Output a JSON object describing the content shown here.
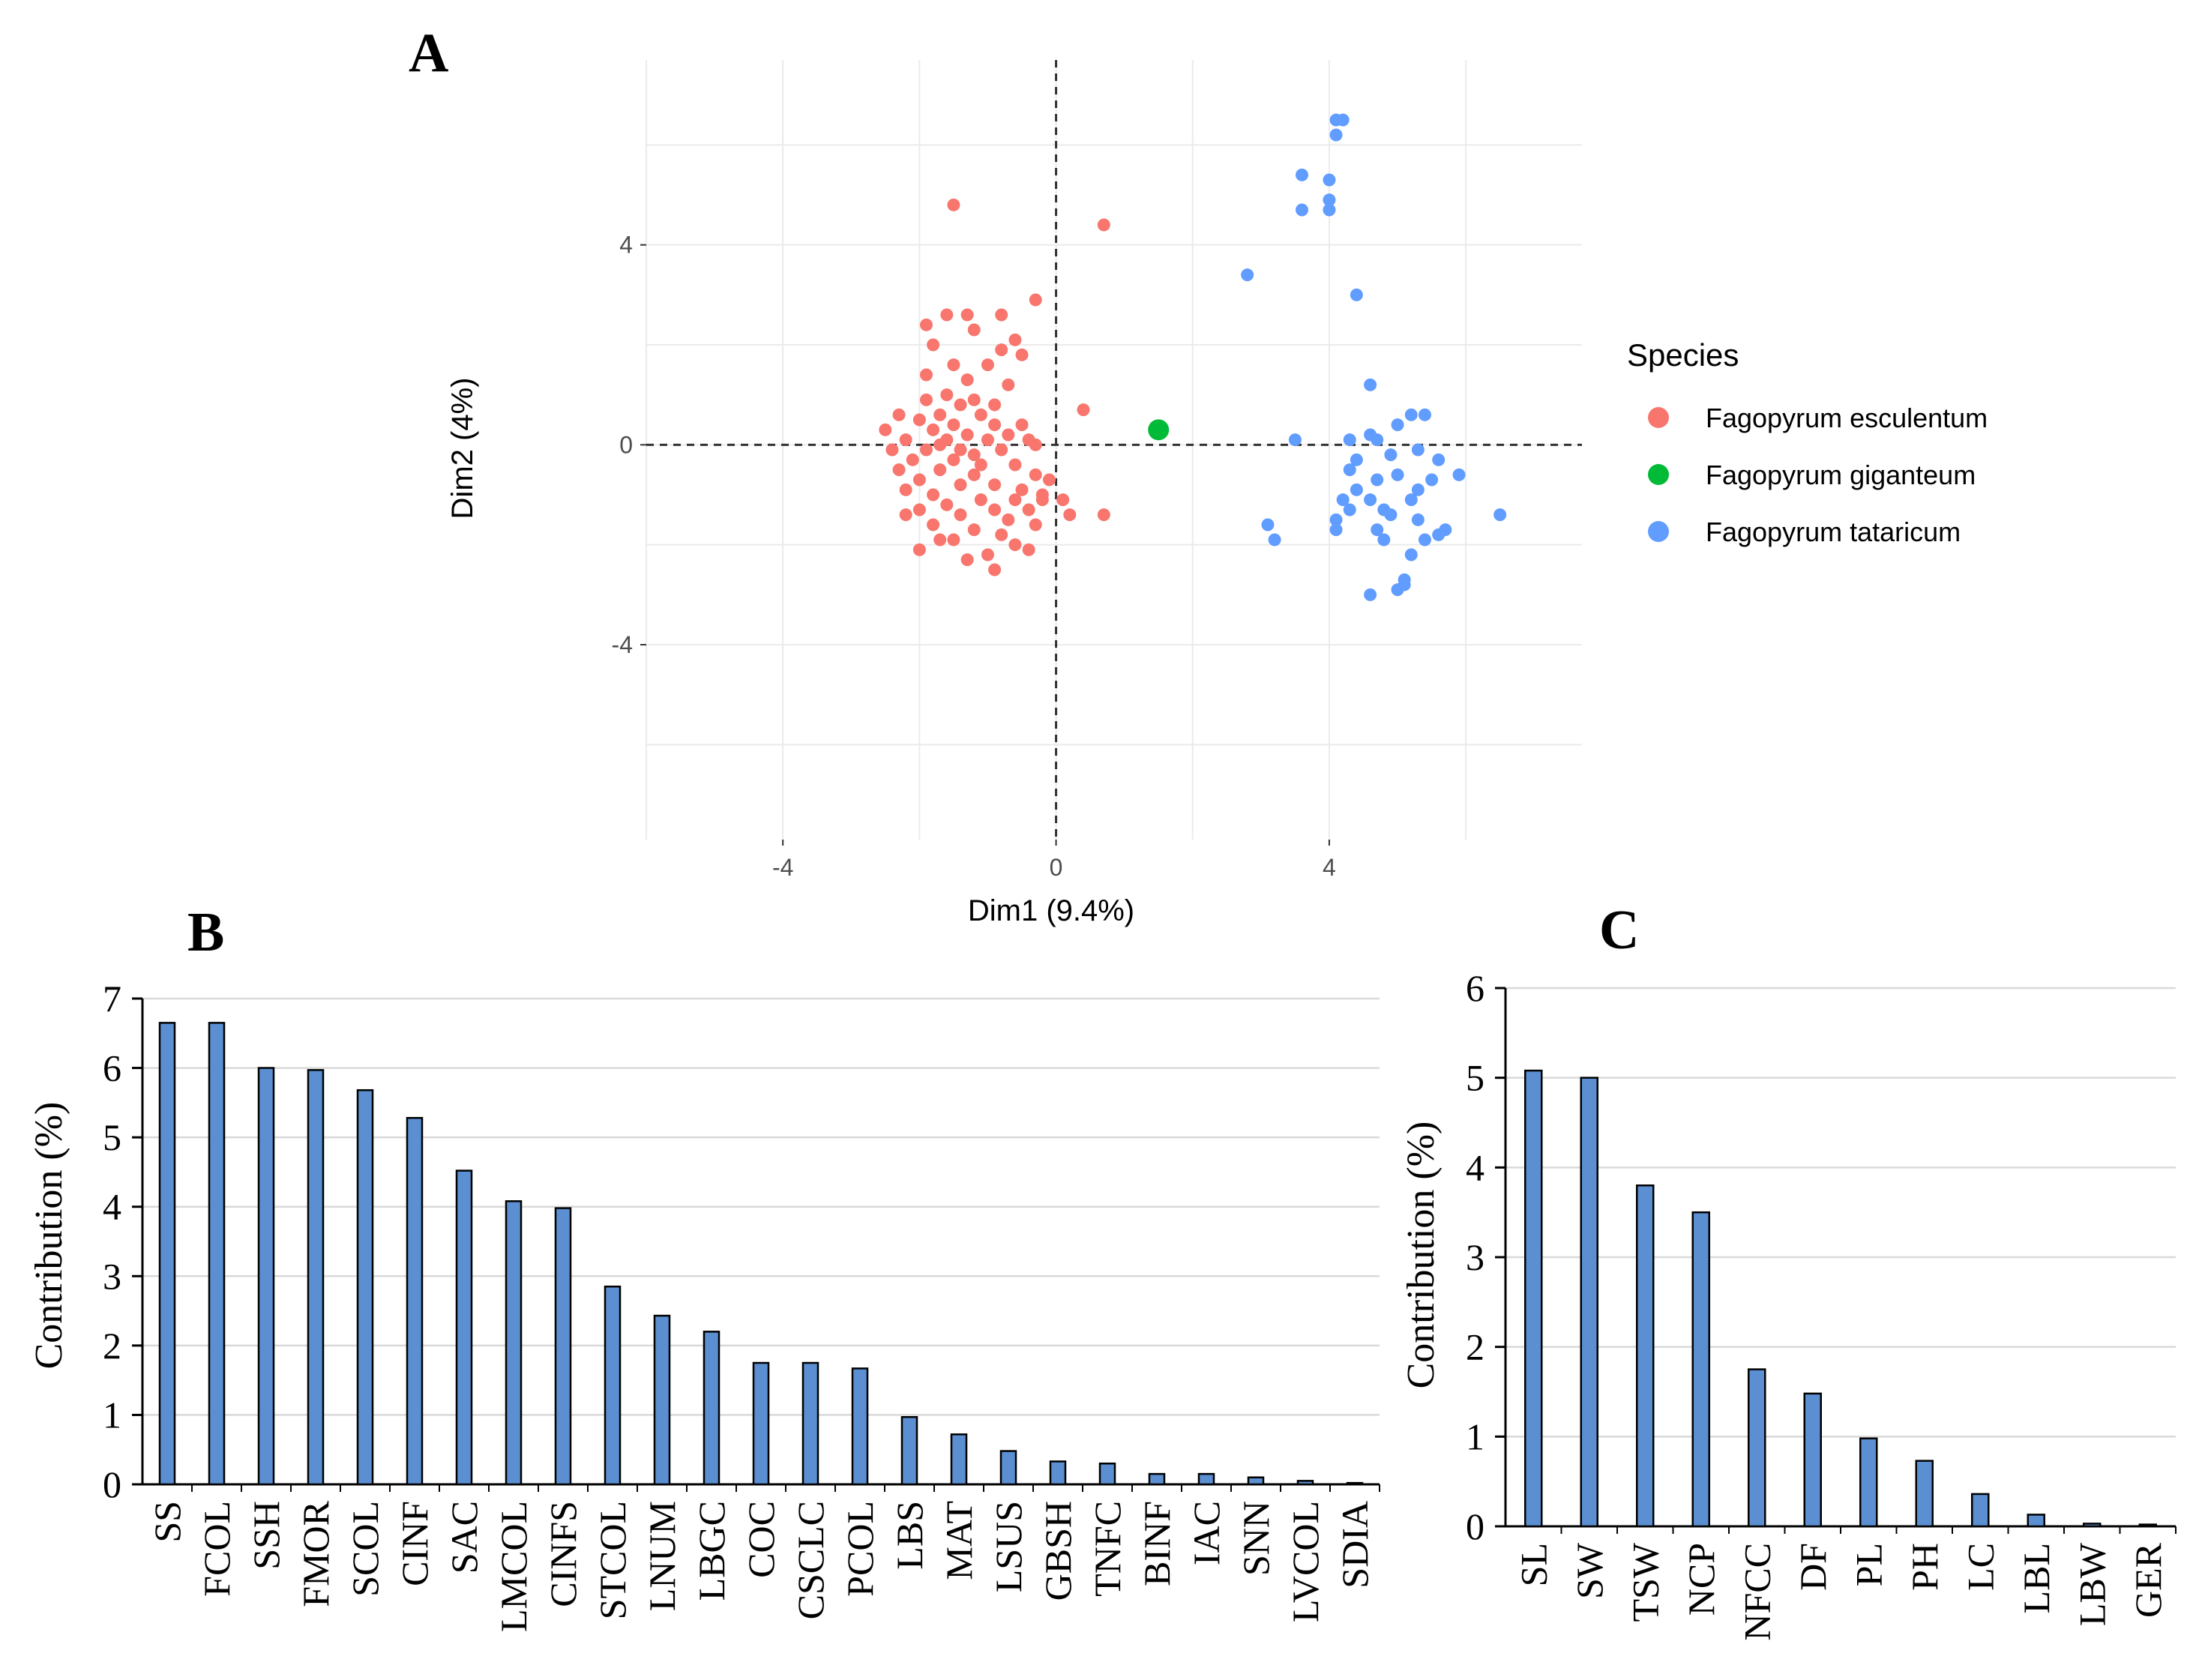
{
  "panels": {
    "a": "A",
    "b": "B",
    "c": "C"
  },
  "chart_data": [
    {
      "type": "scatter",
      "panel": "A",
      "xlabel": "Dim1 (9.4%)",
      "ylabel": "Dim2 (4%)",
      "xlim": [
        -6,
        7.7
      ],
      "ylim": [
        -7.9,
        7.7
      ],
      "x_ticks": [
        -4,
        0,
        4
      ],
      "y_ticks": [
        4,
        0,
        -4
      ],
      "grid": true,
      "legend_title": "Species",
      "legend_position": "right",
      "colors": {
        "esculentum": "#f8766d",
        "giganteum": "#00ba38",
        "tataricum": "#619cff"
      },
      "series": [
        {
          "name": "Fagopyrum esculentum",
          "color": "#f8766d",
          "points": [
            [
              -1.5,
              4.8
            ],
            [
              0.7,
              4.4
            ],
            [
              -0.3,
              2.9
            ],
            [
              -1.3,
              2.6
            ],
            [
              -1.6,
              2.6
            ],
            [
              -0.8,
              2.6
            ],
            [
              -1.9,
              2.4
            ],
            [
              -1.2,
              2.3
            ],
            [
              -0.6,
              2.1
            ],
            [
              -1.8,
              2.0
            ],
            [
              -0.8,
              1.9
            ],
            [
              -0.5,
              1.8
            ],
            [
              -1.0,
              1.6
            ],
            [
              -1.5,
              1.6
            ],
            [
              -1.9,
              1.4
            ],
            [
              -1.3,
              1.3
            ],
            [
              -0.7,
              1.2
            ],
            [
              -1.6,
              1.0
            ],
            [
              -1.9,
              0.9
            ],
            [
              -1.2,
              0.9
            ],
            [
              -0.9,
              0.8
            ],
            [
              -1.4,
              0.8
            ],
            [
              0.4,
              0.7
            ],
            [
              -2.3,
              0.6
            ],
            [
              -1.7,
              0.6
            ],
            [
              -1.1,
              0.6
            ],
            [
              -2.0,
              0.5
            ],
            [
              -1.5,
              0.4
            ],
            [
              -0.9,
              0.4
            ],
            [
              -0.5,
              0.4
            ],
            [
              -2.5,
              0.3
            ],
            [
              -1.8,
              0.3
            ],
            [
              -1.3,
              0.2
            ],
            [
              -0.7,
              0.2
            ],
            [
              -2.2,
              0.1
            ],
            [
              -1.6,
              0.1
            ],
            [
              -1.0,
              0.1
            ],
            [
              -0.4,
              0.1
            ],
            [
              -2.4,
              -0.1
            ],
            [
              -1.9,
              -0.1
            ],
            [
              -1.4,
              -0.1
            ],
            [
              -0.8,
              -0.1
            ],
            [
              -2.1,
              -0.3
            ],
            [
              -1.5,
              -0.3
            ],
            [
              -1.1,
              -0.4
            ],
            [
              -0.6,
              -0.4
            ],
            [
              -2.3,
              -0.5
            ],
            [
              -1.7,
              -0.5
            ],
            [
              -1.2,
              -0.6
            ],
            [
              -0.3,
              -0.6
            ],
            [
              -2.0,
              -0.7
            ],
            [
              -1.4,
              -0.8
            ],
            [
              -0.9,
              -0.8
            ],
            [
              -0.5,
              -0.9
            ],
            [
              -2.2,
              -0.9
            ],
            [
              -1.8,
              -1.0
            ],
            [
              -1.1,
              -1.1
            ],
            [
              -0.6,
              -1.1
            ],
            [
              -0.2,
              -1.1
            ],
            [
              -1.6,
              -1.2
            ],
            [
              -2.0,
              -1.3
            ],
            [
              -0.9,
              -1.3
            ],
            [
              -0.4,
              -1.3
            ],
            [
              0.1,
              -1.1
            ],
            [
              0.2,
              -1.4
            ],
            [
              -1.4,
              -1.4
            ],
            [
              -0.7,
              -1.5
            ],
            [
              0.7,
              -1.4
            ],
            [
              -1.8,
              -1.6
            ],
            [
              -1.2,
              -1.7
            ],
            [
              -0.3,
              -1.6
            ],
            [
              -0.8,
              -1.8
            ],
            [
              -1.5,
              -1.9
            ],
            [
              -2.0,
              -2.1
            ],
            [
              -0.4,
              -2.1
            ],
            [
              -1.0,
              -2.2
            ],
            [
              -0.6,
              -2.0
            ],
            [
              -1.3,
              -2.3
            ],
            [
              -0.9,
              -2.5
            ],
            [
              -1.7,
              -1.9
            ],
            [
              -2.2,
              -1.4
            ],
            [
              -0.1,
              -0.7
            ],
            [
              -0.3,
              0.0
            ],
            [
              -1.7,
              0.0
            ],
            [
              -1.2,
              -0.2
            ],
            [
              -0.2,
              -1.0
            ]
          ]
        },
        {
          "name": "Fagopyrum giganteum",
          "color": "#00ba38",
          "points": [
            [
              1.5,
              0.3
            ]
          ]
        },
        {
          "name": "Fagopyrum tataricum",
          "color": "#619cff",
          "points": [
            [
              4.1,
              6.5
            ],
            [
              4.2,
              6.5
            ],
            [
              4.1,
              6.2
            ],
            [
              3.6,
              5.4
            ],
            [
              4.0,
              5.3
            ],
            [
              4.0,
              4.9
            ],
            [
              3.6,
              4.7
            ],
            [
              4.0,
              4.7
            ],
            [
              2.8,
              3.4
            ],
            [
              4.4,
              3.0
            ],
            [
              4.6,
              1.2
            ],
            [
              5.4,
              0.6
            ],
            [
              5.0,
              0.4
            ],
            [
              5.2,
              0.6
            ],
            [
              4.6,
              0.2
            ],
            [
              4.3,
              0.1
            ],
            [
              3.5,
              0.1
            ],
            [
              4.7,
              0.1
            ],
            [
              5.3,
              -0.1
            ],
            [
              4.9,
              -0.2
            ],
            [
              4.4,
              -0.3
            ],
            [
              5.6,
              -0.3
            ],
            [
              4.3,
              -0.5
            ],
            [
              5.0,
              -0.6
            ],
            [
              5.9,
              -0.6
            ],
            [
              4.7,
              -0.7
            ],
            [
              5.5,
              -0.7
            ],
            [
              4.4,
              -0.9
            ],
            [
              5.3,
              -0.9
            ],
            [
              4.2,
              -1.1
            ],
            [
              4.6,
              -1.1
            ],
            [
              5.2,
              -1.1
            ],
            [
              4.3,
              -1.3
            ],
            [
              4.8,
              -1.3
            ],
            [
              4.9,
              -1.4
            ],
            [
              5.3,
              -1.5
            ],
            [
              6.5,
              -1.4
            ],
            [
              3.1,
              -1.6
            ],
            [
              4.1,
              -1.5
            ],
            [
              4.1,
              -1.7
            ],
            [
              4.7,
              -1.7
            ],
            [
              5.7,
              -1.7
            ],
            [
              5.6,
              -1.8
            ],
            [
              3.2,
              -1.9
            ],
            [
              5.4,
              -1.9
            ],
            [
              4.8,
              -1.9
            ],
            [
              5.2,
              -2.2
            ],
            [
              5.1,
              -2.8
            ],
            [
              5.0,
              -2.9
            ],
            [
              4.6,
              -3.0
            ],
            [
              5.1,
              -2.7
            ]
          ]
        }
      ]
    },
    {
      "type": "bar",
      "panel": "B",
      "ylabel": "Contribution (%)",
      "xlabel": "",
      "ylim": [
        0,
        7
      ],
      "y_ticks": [
        0,
        1,
        2,
        3,
        4,
        5,
        6,
        7
      ],
      "bar_color": "#5b8fd1",
      "categories": [
        "SS",
        "FCOL",
        "SSH",
        "FMOR",
        "SCOL",
        "CINF",
        "SAC",
        "LMCOL",
        "CINFS",
        "STCOL",
        "LNUM",
        "LBGC",
        "COC",
        "CSCLC",
        "PCOL",
        "LBS",
        "MAT",
        "LSUS",
        "GBSH",
        "TNFC",
        "BINF",
        "IAC",
        "SNN",
        "LVCOL",
        "SDIA"
      ],
      "values": [
        6.65,
        6.65,
        6.0,
        5.97,
        5.68,
        5.28,
        4.52,
        4.08,
        3.98,
        2.85,
        2.43,
        2.2,
        1.75,
        1.75,
        1.67,
        0.97,
        0.72,
        0.48,
        0.33,
        0.3,
        0.15,
        0.15,
        0.1,
        0.05,
        0.02
      ]
    },
    {
      "type": "bar",
      "panel": "C",
      "ylabel": "Contribution (%)",
      "xlabel": "",
      "ylim": [
        0,
        6
      ],
      "y_ticks": [
        0,
        1,
        2,
        3,
        4,
        5,
        6
      ],
      "bar_color": "#5b8fd1",
      "categories": [
        "SL",
        "SW",
        "TSW",
        "NCP",
        "NFCC",
        "DF",
        "PL",
        "PH",
        "LC",
        "LBL",
        "LBW",
        "GER"
      ],
      "values": [
        5.08,
        5.0,
        3.8,
        3.5,
        1.75,
        1.48,
        0.98,
        0.73,
        0.36,
        0.13,
        0.03,
        0.02
      ]
    }
  ]
}
